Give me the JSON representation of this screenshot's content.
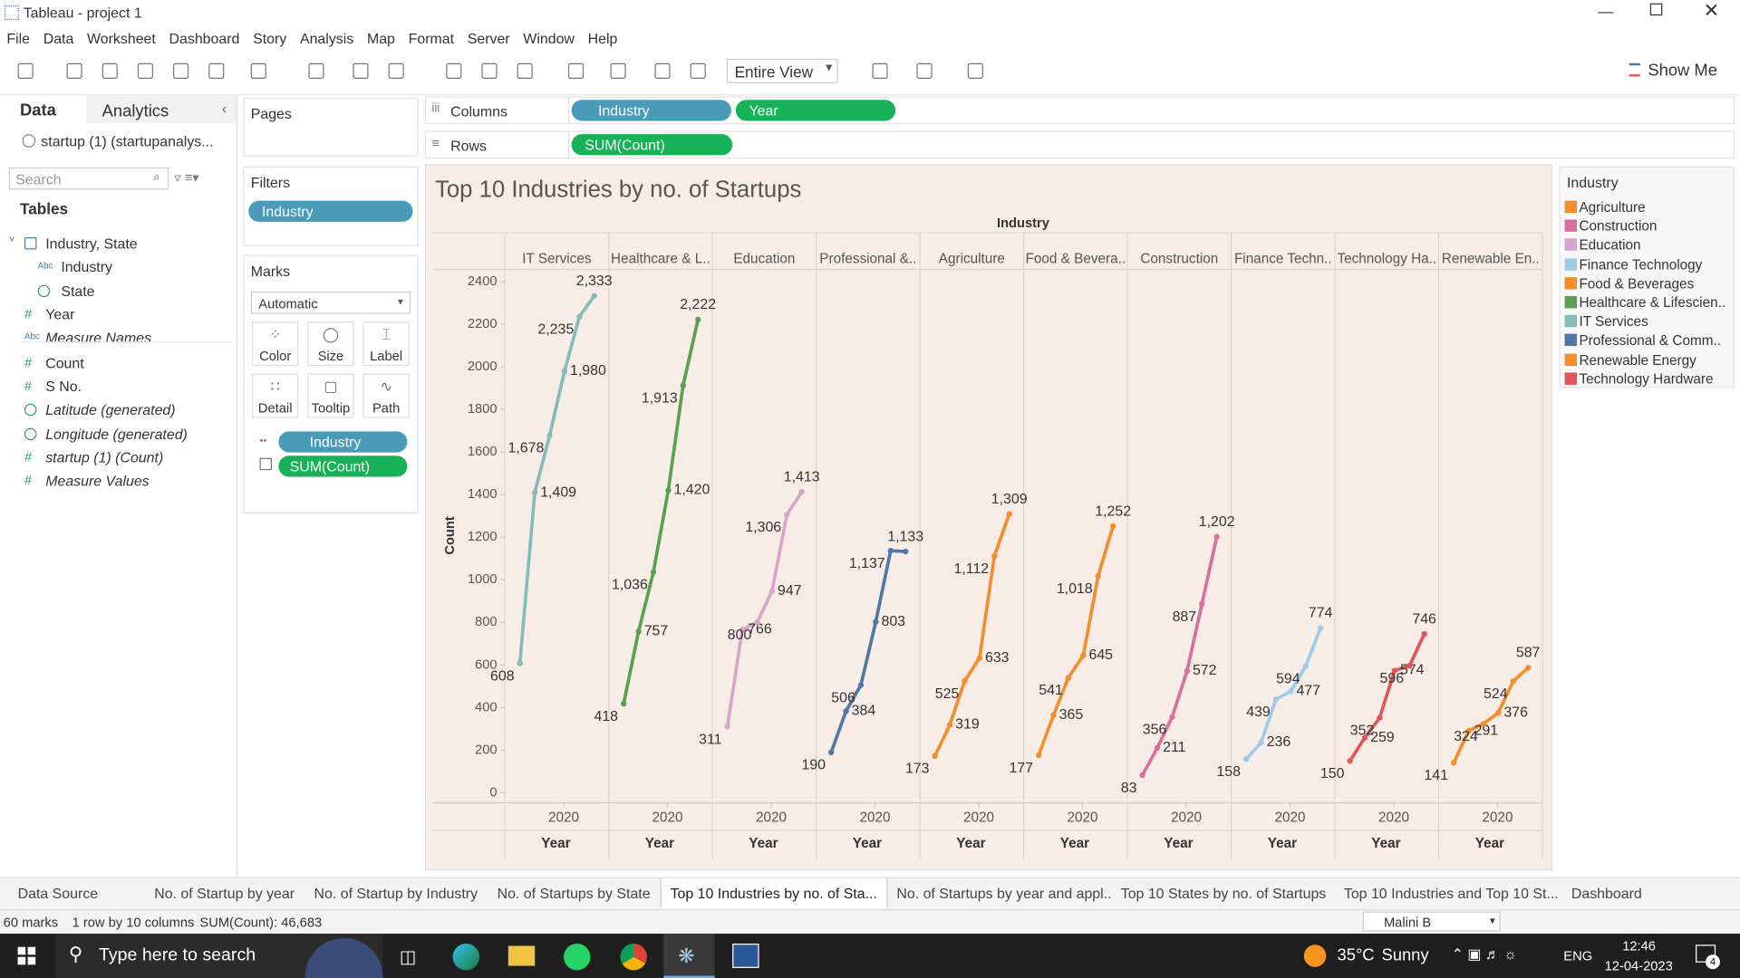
{
  "ui": {
    "window_title": "Tableau - project 1",
    "menu": [
      "File",
      "Data",
      "Worksheet",
      "Dashboard",
      "Story",
      "Analysis",
      "Map",
      "Format",
      "Server",
      "Window",
      "Help"
    ],
    "toolbar": {
      "fit": "Entire View",
      "show_me": "Show Me"
    },
    "data_pane": {
      "tabs": [
        "Data",
        "Analytics"
      ],
      "source": "startup (1) (startupanalys...",
      "search_placeholder": "Search",
      "tables": "Tables",
      "fields": [
        {
          "name": "Industry, State"
        },
        {
          "icon": "Abc",
          "name": "Industry"
        },
        {
          "name": "State"
        },
        {
          "icon": "#",
          "name": "Year"
        },
        {
          "icon": "Abc",
          "name": "Measure Names"
        },
        {
          "icon": "#",
          "name": "Count"
        },
        {
          "icon": "#",
          "name": "S No."
        },
        {
          "name": "Latitude (generated)"
        },
        {
          "name": "Longitude (generated)"
        },
        {
          "icon": "#",
          "name": "startup (1) (Count)"
        },
        {
          "icon": "#",
          "name": "Measure Values"
        }
      ]
    },
    "cards": {
      "pages": "Pages",
      "filters": "Filters",
      "filter_pills": [
        "Industry"
      ],
      "marks": "Marks",
      "mark_type": "Automatic",
      "mark_buttons": [
        "Color",
        "Size",
        "Label",
        "Detail",
        "Tooltip",
        "Path"
      ],
      "mark_pills": [
        "Industry",
        "SUM(Count)"
      ]
    },
    "shelves": {
      "columns": "Columns",
      "column_pills": [
        "Industry",
        "Year"
      ],
      "rows": "Rows",
      "row_pills": [
        "SUM(Count)"
      ]
    },
    "legend": {
      "title": "Industry",
      "items": [
        {
          "name": "Agriculture",
          "color": "#f28e2b"
        },
        {
          "name": "Construction",
          "color": "#d7709b"
        },
        {
          "name": "Education",
          "color": "#d4a6c8"
        },
        {
          "name": "Finance Technology",
          "color": "#a0cbe8"
        },
        {
          "name": "Food & Beverages",
          "color": "#f28e2b"
        },
        {
          "name": "Healthcare & Lifescien..",
          "color": "#59a14f"
        },
        {
          "name": "IT Services",
          "color": "#86bcb6"
        },
        {
          "name": "Professional & Comm..",
          "color": "#4e79a7"
        },
        {
          "name": "Renewable Energy",
          "color": "#f28e2b"
        },
        {
          "name": "Technology Hardware",
          "color": "#e15759"
        }
      ]
    },
    "sheet_tabs": [
      "Data Source",
      "No. of Startup by year",
      "No. of Startup by Industry",
      "No. of Startups by State",
      "Top 10 Industries by no. of Sta...",
      "No. of Startups by year and appl...",
      "Top 10 States by no. of Startups",
      "Top 10 Industries and Top 10 St...",
      "Dashboard"
    ],
    "status": {
      "marks": "60 marks",
      "dims": "1 row by 10 columns",
      "sum": "SUM(Count): 46,683",
      "user": "Malini B"
    },
    "taskbar": {
      "search": "Type here to search",
      "temp": "35°C",
      "weather": "Sunny",
      "lang": "ENG",
      "time": "12:46",
      "date": "12-04-2023",
      "notifications": "4"
    }
  },
  "chart_data": {
    "type": "line",
    "title": "Top 10 Industries by no. of Startups",
    "column_header": "Industry",
    "y_label": "Count",
    "x_label": "Year",
    "x_tick": "2020",
    "ylim": [
      0,
      2400
    ],
    "yticks": [
      0,
      200,
      400,
      600,
      800,
      1000,
      1200,
      1400,
      1600,
      1800,
      2000,
      2200,
      2400
    ],
    "grid": false,
    "series": [
      {
        "name": "IT Services",
        "color": "#86bcb6",
        "values": [
          608,
          1409,
          1678,
          1980,
          2235,
          2333
        ],
        "value_labels": [
          "608",
          "1,409",
          "1,678",
          "1,980",
          "2,235",
          "2,333"
        ]
      },
      {
        "name": "Healthcare & L..",
        "color": "#59a14f",
        "values": [
          418,
          757,
          1036,
          1420,
          1913,
          2222
        ],
        "value_labels": [
          "418",
          "757",
          "1,036",
          "1,420",
          "1,913",
          "2,222"
        ]
      },
      {
        "name": "Education",
        "color": "#d4a6c8",
        "values": [
          311,
          766,
          800,
          947,
          1306,
          1413
        ],
        "value_labels": [
          "311",
          "766",
          "800",
          "947",
          "1,306",
          "1,413"
        ]
      },
      {
        "name": "Professional &..",
        "color": "#4e79a7",
        "values": [
          190,
          384,
          506,
          803,
          1137,
          1133
        ],
        "value_labels": [
          "190",
          "384",
          "506",
          "803",
          "1,137",
          "1,133"
        ]
      },
      {
        "name": "Agriculture",
        "color": "#f28e2b",
        "values": [
          173,
          319,
          525,
          633,
          1112,
          1309
        ],
        "value_labels": [
          "173",
          "319",
          "525",
          "633",
          "1,112",
          "1,309"
        ]
      },
      {
        "name": "Food & Bevera..",
        "color": "#f28e2b",
        "values": [
          177,
          365,
          541,
          645,
          1018,
          1252
        ],
        "value_labels": [
          "177",
          "365",
          "541",
          "645",
          "1,018",
          "1,252"
        ]
      },
      {
        "name": "Construction",
        "color": "#d7709b",
        "values": [
          83,
          211,
          356,
          572,
          887,
          1202
        ],
        "value_labels": [
          "83",
          "211",
          "356",
          "572",
          "887",
          "1,202"
        ]
      },
      {
        "name": "Finance Techn..",
        "color": "#a0cbe8",
        "values": [
          158,
          236,
          439,
          477,
          594,
          774
        ],
        "value_labels": [
          "158",
          "236",
          "439",
          "477",
          "594",
          "774"
        ]
      },
      {
        "name": "Technology Ha..",
        "color": "#e15759",
        "values": [
          150,
          259,
          352,
          574,
          596,
          746
        ],
        "value_labels": [
          "150",
          "259",
          "352",
          "574",
          "596",
          "746"
        ]
      },
      {
        "name": "Renewable En..",
        "color": "#f28e2b",
        "values": [
          141,
          291,
          324,
          376,
          524,
          587
        ],
        "value_labels": [
          "141",
          "291",
          "324",
          "376",
          "524",
          "587"
        ]
      }
    ]
  }
}
